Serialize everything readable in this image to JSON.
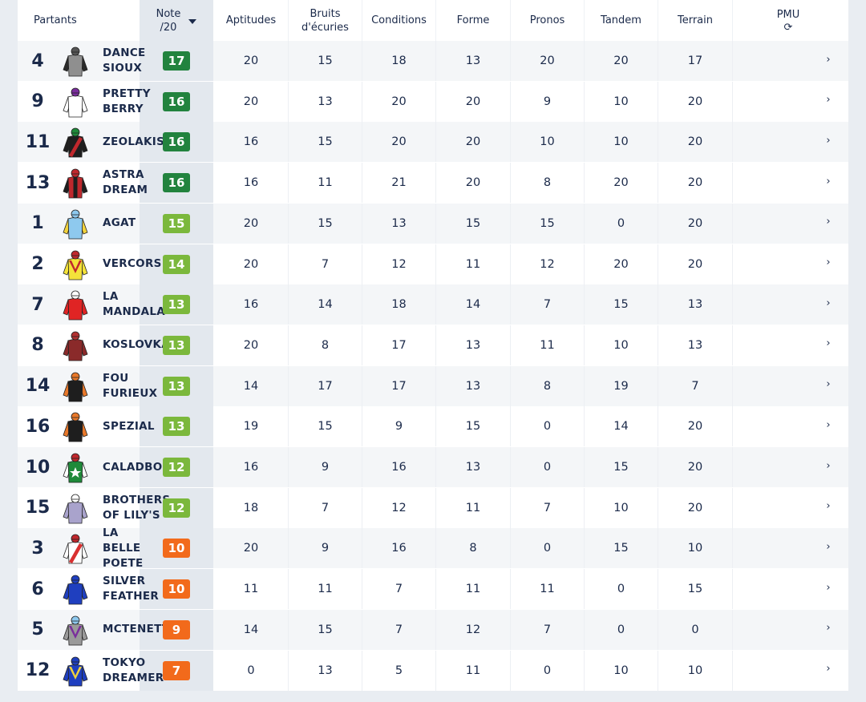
{
  "headers": {
    "partants": "Partants",
    "note": "Note\n/20",
    "aptitudes": "Aptitudes",
    "bruits": "Bruits\nd'écuries",
    "conditions": "Conditions",
    "forme": "Forme",
    "pronos": "Pronos",
    "tandem": "Tandem",
    "terrain": "Terrain",
    "pmu": "PMU",
    "pmu_icon": "refresh-icon",
    "sort_icon": "caret-down-icon"
  },
  "colors": {
    "dark_green": "#22833e",
    "light_green": "#7bb83c",
    "orange": "#f26a1b"
  },
  "runners": [
    {
      "num": "4",
      "name": "DANCE\nSIOUX",
      "note": "17",
      "note_level": "dark_green",
      "scores": [
        "20",
        "15",
        "18",
        "13",
        "20",
        "20",
        "17"
      ],
      "pmu": "",
      "silk": {
        "body": "#8f8f8f",
        "sleeve": "#2a2a2a",
        "cap": "#555555",
        "pattern": "plain",
        "accent": "#2a2a2a"
      }
    },
    {
      "num": "9",
      "name": "PRETTY\nBERRY",
      "note": "16",
      "note_level": "dark_green",
      "scores": [
        "20",
        "13",
        "20",
        "20",
        "9",
        "10",
        "20"
      ],
      "pmu": "",
      "silk": {
        "body": "#ffffff",
        "sleeve": "#ffffff",
        "cap": "#7a2d9c",
        "pattern": "plain",
        "accent": "#7a2d9c"
      }
    },
    {
      "num": "11",
      "name": "ZEOLAKIS",
      "note": "16",
      "note_level": "dark_green",
      "scores": [
        "16",
        "15",
        "20",
        "20",
        "10",
        "10",
        "20"
      ],
      "pmu": "",
      "silk": {
        "body": "#1e1e1e",
        "sleeve": "#1e1e1e",
        "cap": "#1f8a3a",
        "pattern": "sash",
        "accent": "#c0282d"
      }
    },
    {
      "num": "13",
      "name": "ASTRA\nDREAM",
      "note": "16",
      "note_level": "dark_green",
      "scores": [
        "16",
        "11",
        "21",
        "20",
        "8",
        "20",
        "20"
      ],
      "pmu": "",
      "silk": {
        "body": "#c0282d",
        "sleeve": "#1e1e1e",
        "cap": "#c0282d",
        "pattern": "stripe",
        "accent": "#1e1e1e"
      }
    },
    {
      "num": "1",
      "name": "AGAT",
      "note": "15",
      "note_level": "light_green",
      "scores": [
        "20",
        "15",
        "13",
        "15",
        "15",
        "0",
        "20"
      ],
      "pmu": "",
      "silk": {
        "body": "#8ec9ee",
        "sleeve": "#f2d23b",
        "cap": "#8ec9ee",
        "pattern": "plain",
        "accent": "#f2d23b"
      }
    },
    {
      "num": "2",
      "name": "VERCORS",
      "note": "14",
      "note_level": "light_green",
      "scores": [
        "20",
        "7",
        "12",
        "11",
        "12",
        "20",
        "20"
      ],
      "pmu": "",
      "silk": {
        "body": "#f4e23a",
        "sleeve": "#f4e23a",
        "cap": "#c0282d",
        "pattern": "vee",
        "accent": "#c0282d"
      }
    },
    {
      "num": "7",
      "name": "LA\nMANDALA",
      "note": "13",
      "note_level": "light_green",
      "scores": [
        "16",
        "14",
        "18",
        "14",
        "7",
        "15",
        "13"
      ],
      "pmu": "",
      "silk": {
        "body": "#e02424",
        "sleeve": "#e02424",
        "cap": "#ffffff",
        "pattern": "plain",
        "accent": "#e02424"
      }
    },
    {
      "num": "8",
      "name": "KOSLOVKA",
      "note": "13",
      "note_level": "light_green",
      "scores": [
        "20",
        "8",
        "17",
        "13",
        "11",
        "10",
        "13"
      ],
      "pmu": "",
      "silk": {
        "body": "#8a2a2a",
        "sleeve": "#8a2a2a",
        "cap": "#b23030",
        "pattern": "plain",
        "accent": "#8a2a2a"
      }
    },
    {
      "num": "14",
      "name": "FOU\nFURIEUX",
      "note": "13",
      "note_level": "light_green",
      "scores": [
        "14",
        "17",
        "17",
        "13",
        "8",
        "19",
        "7"
      ],
      "pmu": "",
      "silk": {
        "body": "#1e1e1e",
        "sleeve": "#e8782a",
        "cap": "#e8782a",
        "pattern": "plain",
        "accent": "#e8782a"
      }
    },
    {
      "num": "16",
      "name": "SPEZIAL",
      "note": "13",
      "note_level": "light_green",
      "scores": [
        "19",
        "15",
        "9",
        "15",
        "0",
        "14",
        "20"
      ],
      "pmu": "",
      "silk": {
        "body": "#1e1e1e",
        "sleeve": "#e8782a",
        "cap": "#e8782a",
        "pattern": "plain",
        "accent": "#e8782a"
      }
    },
    {
      "num": "10",
      "name": "CALADBOL",
      "note": "12",
      "note_level": "light_green",
      "scores": [
        "16",
        "9",
        "16",
        "13",
        "0",
        "15",
        "20"
      ],
      "pmu": "",
      "silk": {
        "body": "#1f8a3a",
        "sleeve": "#ffffff",
        "cap": "#c0282d",
        "pattern": "star",
        "accent": "#ffffff"
      }
    },
    {
      "num": "15",
      "name": "BROTHERS\nOF LILY'S",
      "note": "12",
      "note_level": "light_green",
      "scores": [
        "18",
        "7",
        "12",
        "11",
        "7",
        "10",
        "20"
      ],
      "pmu": "",
      "silk": {
        "body": "#a9a3cc",
        "sleeve": "#a9a3cc",
        "cap": "#ffffff",
        "pattern": "plain",
        "accent": "#a9a3cc"
      }
    },
    {
      "num": "3",
      "name": "LA\nBELLE\nPOETE",
      "note": "10",
      "note_level": "orange",
      "scores": [
        "20",
        "9",
        "16",
        "8",
        "0",
        "15",
        "10"
      ],
      "pmu": "",
      "silk": {
        "body": "#ffffff",
        "sleeve": "#ffffff",
        "cap": "#c0282d",
        "pattern": "sash",
        "accent": "#d93030"
      }
    },
    {
      "num": "6",
      "name": "SILVER\nFEATHER",
      "note": "10",
      "note_level": "orange",
      "scores": [
        "11",
        "11",
        "7",
        "11",
        "11",
        "0",
        "15"
      ],
      "pmu": "",
      "silk": {
        "body": "#1f3fbf",
        "sleeve": "#1f3fbf",
        "cap": "#1f3fbf",
        "pattern": "plain",
        "accent": "#1f3fbf"
      }
    },
    {
      "num": "5",
      "name": "MCTENETT",
      "note": "9",
      "note_level": "orange",
      "scores": [
        "14",
        "15",
        "7",
        "12",
        "7",
        "0",
        "0"
      ],
      "pmu": "",
      "silk": {
        "body": "#9a9a9a",
        "sleeve": "#9a9a9a",
        "cap": "#8ec9ee",
        "pattern": "vee",
        "accent": "#7a2d9c"
      }
    },
    {
      "num": "12",
      "name": "TOKYO\nDREAMER",
      "note": "7",
      "note_level": "orange",
      "scores": [
        "0",
        "13",
        "5",
        "11",
        "0",
        "10",
        "10"
      ],
      "pmu": "",
      "silk": {
        "body": "#1f3fbf",
        "sleeve": "#1f3fbf",
        "cap": "#1f3fbf",
        "pattern": "vee",
        "accent": "#f2d23b"
      }
    }
  ]
}
